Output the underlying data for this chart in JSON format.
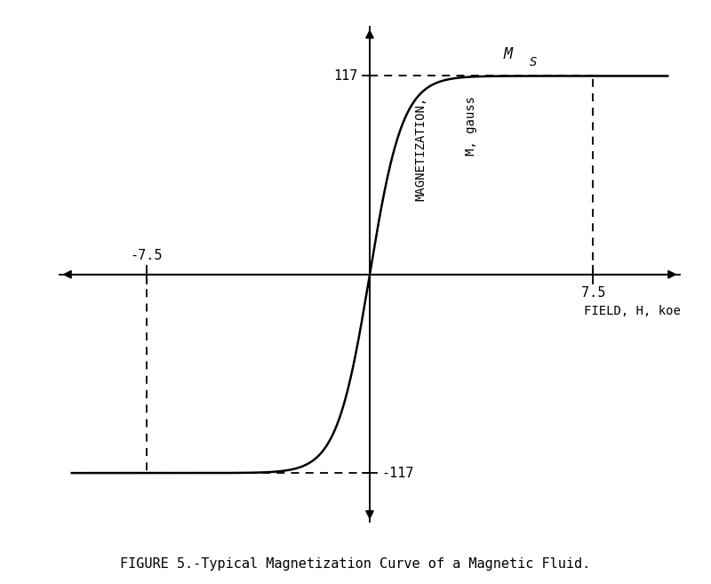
{
  "title": "FIGURE 5.-Typical Magnetization Curve of a Magnetic Fluid.",
  "ylabel_line1": "MAGNETIZATION,",
  "ylabel_line2": "M, gauss",
  "xlabel": "FIELD, H, koe",
  "x_neg_label": "-7.5",
  "x_pos_label": "7.5",
  "y_pos_label": "117",
  "y_neg_label": "-117",
  "ms_label": "M",
  "ms_subscript": "S",
  "y_sat": 117,
  "x_sat": 7.5,
  "curve_k": 0.9,
  "xlim": [
    -10.5,
    10.5
  ],
  "ylim": [
    -148,
    148
  ],
  "bg_color": "#ffffff",
  "curve_color": "#000000",
  "dash_color": "#000000",
  "axis_color": "#000000",
  "font_size_axis_label": 10,
  "font_size_tick_label": 11,
  "font_size_caption": 11,
  "font_size_ms": 12,
  "arrow_scale": 14,
  "lw_axis": 1.3,
  "lw_curve": 1.8,
  "lw_dash": 1.3
}
